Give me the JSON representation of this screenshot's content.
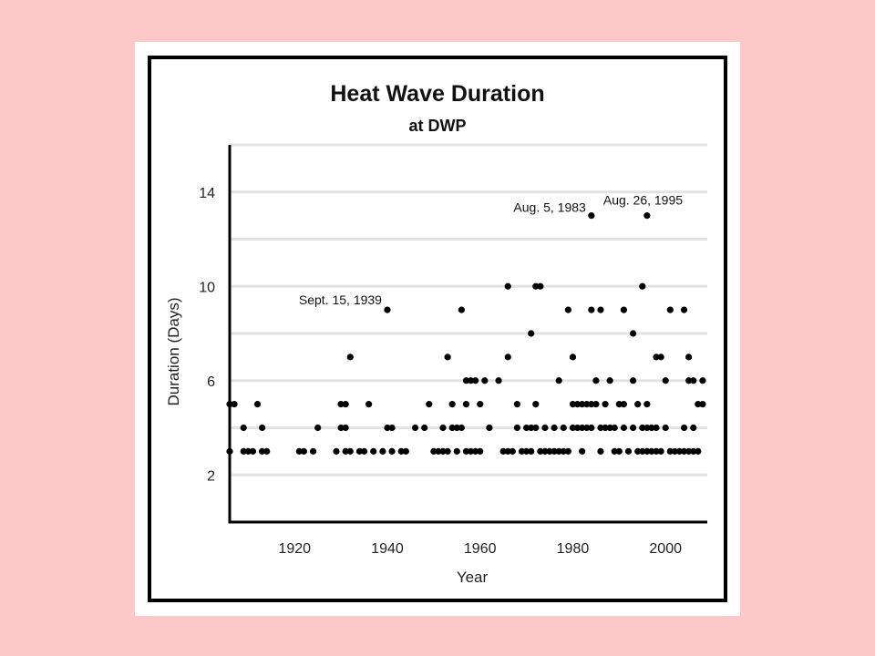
{
  "chart_data": {
    "type": "scatter",
    "title": "Heat Wave Duration",
    "subtitle": "at DWP",
    "xlabel": "Year",
    "ylabel": "Duration (Days)",
    "xlim": [
      1906,
      2009
    ],
    "ylim": [
      0,
      16
    ],
    "xticks": [
      1920,
      1940,
      1960,
      1980,
      2000
    ],
    "yticks": [
      2,
      6,
      10,
      14
    ],
    "grid": true,
    "points": [
      [
        1906,
        3
      ],
      [
        1906,
        5
      ],
      [
        1907,
        5
      ],
      [
        1909,
        3
      ],
      [
        1909,
        4
      ],
      [
        1910,
        3
      ],
      [
        1911,
        3
      ],
      [
        1912,
        5
      ],
      [
        1913,
        3
      ],
      [
        1913,
        4
      ],
      [
        1914,
        3
      ],
      [
        1921,
        3
      ],
      [
        1922,
        3
      ],
      [
        1924,
        3
      ],
      [
        1925,
        4
      ],
      [
        1929,
        3
      ],
      [
        1930,
        4
      ],
      [
        1930,
        5
      ],
      [
        1931,
        3
      ],
      [
        1931,
        5
      ],
      [
        1931,
        4
      ],
      [
        1932,
        7
      ],
      [
        1932,
        3
      ],
      [
        1934,
        3
      ],
      [
        1935,
        3
      ],
      [
        1936,
        5
      ],
      [
        1937,
        3
      ],
      [
        1939,
        3
      ],
      [
        1940,
        9
      ],
      [
        1940,
        4
      ],
      [
        1941,
        3
      ],
      [
        1941,
        4
      ],
      [
        1943,
        3
      ],
      [
        1944,
        3
      ],
      [
        1946,
        4
      ],
      [
        1948,
        4
      ],
      [
        1949,
        5
      ],
      [
        1950,
        3
      ],
      [
        1951,
        3
      ],
      [
        1952,
        3
      ],
      [
        1952,
        4
      ],
      [
        1953,
        7
      ],
      [
        1953,
        3
      ],
      [
        1954,
        5
      ],
      [
        1954,
        4
      ],
      [
        1955,
        3
      ],
      [
        1955,
        4
      ],
      [
        1956,
        9
      ],
      [
        1956,
        4
      ],
      [
        1957,
        6
      ],
      [
        1957,
        5
      ],
      [
        1957,
        3
      ],
      [
        1958,
        3
      ],
      [
        1958,
        6
      ],
      [
        1959,
        3
      ],
      [
        1959,
        6
      ],
      [
        1960,
        5
      ],
      [
        1960,
        3
      ],
      [
        1961,
        6
      ],
      [
        1962,
        4
      ],
      [
        1964,
        6
      ],
      [
        1965,
        3
      ],
      [
        1966,
        10
      ],
      [
        1966,
        7
      ],
      [
        1966,
        3
      ],
      [
        1967,
        3
      ],
      [
        1968,
        5
      ],
      [
        1968,
        4
      ],
      [
        1969,
        3
      ],
      [
        1970,
        3
      ],
      [
        1970,
        4
      ],
      [
        1971,
        8
      ],
      [
        1971,
        3
      ],
      [
        1971,
        4
      ],
      [
        1972,
        10
      ],
      [
        1972,
        5
      ],
      [
        1972,
        4
      ],
      [
        1973,
        10
      ],
      [
        1973,
        3
      ],
      [
        1974,
        3
      ],
      [
        1974,
        4
      ],
      [
        1975,
        3
      ],
      [
        1976,
        3
      ],
      [
        1976,
        4
      ],
      [
        1977,
        6
      ],
      [
        1977,
        3
      ],
      [
        1978,
        4
      ],
      [
        1978,
        3
      ],
      [
        1979,
        9
      ],
      [
        1979,
        3
      ],
      [
        1980,
        7
      ],
      [
        1980,
        5
      ],
      [
        1980,
        4
      ],
      [
        1981,
        5
      ],
      [
        1981,
        4
      ],
      [
        1982,
        5
      ],
      [
        1982,
        3
      ],
      [
        1982,
        4
      ],
      [
        1983,
        5
      ],
      [
        1983,
        4
      ],
      [
        1984,
        13
      ],
      [
        1984,
        9
      ],
      [
        1984,
        5
      ],
      [
        1984,
        4
      ],
      [
        1985,
        6
      ],
      [
        1985,
        5
      ],
      [
        1986,
        9
      ],
      [
        1986,
        4
      ],
      [
        1986,
        3
      ],
      [
        1987,
        5
      ],
      [
        1987,
        4
      ],
      [
        1988,
        6
      ],
      [
        1988,
        4
      ],
      [
        1989,
        3
      ],
      [
        1989,
        4
      ],
      [
        1990,
        5
      ],
      [
        1990,
        3
      ],
      [
        1991,
        9
      ],
      [
        1991,
        5
      ],
      [
        1991,
        4
      ],
      [
        1992,
        3
      ],
      [
        1993,
        8
      ],
      [
        1993,
        6
      ],
      [
        1993,
        4
      ],
      [
        1994,
        3
      ],
      [
        1994,
        5
      ],
      [
        1995,
        10
      ],
      [
        1995,
        4
      ],
      [
        1995,
        3
      ],
      [
        1996,
        13
      ],
      [
        1996,
        5
      ],
      [
        1996,
        3
      ],
      [
        1996,
        4
      ],
      [
        1997,
        4
      ],
      [
        1997,
        3
      ],
      [
        1998,
        7
      ],
      [
        1998,
        4
      ],
      [
        1998,
        3
      ],
      [
        1999,
        7
      ],
      [
        1999,
        3
      ],
      [
        2000,
        6
      ],
      [
        2000,
        4
      ],
      [
        2001,
        9
      ],
      [
        2001,
        3
      ],
      [
        2002,
        3
      ],
      [
        2003,
        3
      ],
      [
        2004,
        9
      ],
      [
        2004,
        4
      ],
      [
        2004,
        3
      ],
      [
        2005,
        6
      ],
      [
        2005,
        7
      ],
      [
        2005,
        3
      ],
      [
        2006,
        6
      ],
      [
        2006,
        4
      ],
      [
        2006,
        3
      ],
      [
        2007,
        5
      ],
      [
        2007,
        3
      ],
      [
        2008,
        6
      ],
      [
        2008,
        5
      ]
    ],
    "annotations": [
      {
        "text": "Sept. 15, 1939",
        "x": 1940,
        "y": 9
      },
      {
        "text": "Aug. 5, 1983",
        "x": 1984,
        "y": 13
      },
      {
        "text": "Aug. 26, 1995",
        "x": 1996,
        "y": 13
      }
    ]
  }
}
